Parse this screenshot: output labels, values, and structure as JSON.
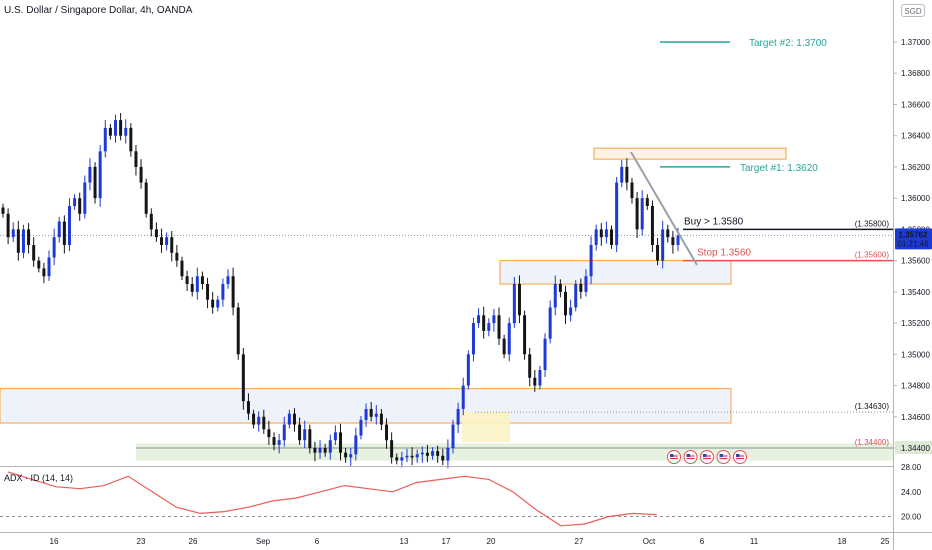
{
  "header": {
    "title": "U.S. Dollar / Singapore Dollar, 4h, OANDA",
    "currency_badge": "SGD",
    "indicator_label": "ADX · ID (14, 14)"
  },
  "price_badge": {
    "price": "1.35762",
    "countdown": "01:21:46"
  },
  "colors": {
    "bull": "#1e3ad6",
    "bear": "#151515",
    "target": "#26a69a",
    "stop": "#e05252",
    "orange_box": "#f5a040",
    "zone_fill": "#eef3fb",
    "green_zone": "#e6f1df",
    "adx_line": "#ef5b5b",
    "price_badge": "#1e3ad6"
  },
  "chart_data": [
    {
      "type": "candlestick",
      "title": "U.S. Dollar / Singapore Dollar, 4h, OANDA",
      "x_ticks": [
        "16",
        "23",
        "26",
        "Sep",
        "6",
        "13",
        "17",
        "20",
        "27",
        "Oct",
        "6",
        "11",
        "18",
        "25"
      ],
      "y_ticks": [
        "1.37000",
        "1.36800",
        "1.36600",
        "1.36400",
        "1.36200",
        "1.36000",
        "1.35800",
        "1.35600",
        "1.35400",
        "1.35200",
        "1.35000",
        "1.34800",
        "1.34600",
        "1.34400"
      ],
      "ylim": [
        1.3432,
        1.3728
      ],
      "last_price": 1.35762,
      "candle_closes": [
        1.359,
        1.3575,
        1.358,
        1.3565,
        1.358,
        1.357,
        1.356,
        1.3555,
        1.355,
        1.3562,
        1.3575,
        1.3585,
        1.357,
        1.3595,
        1.36,
        1.359,
        1.361,
        1.362,
        1.36,
        1.363,
        1.3645,
        1.364,
        1.365,
        1.364,
        1.3645,
        1.363,
        1.362,
        1.361,
        1.359,
        1.358,
        1.3575,
        1.357,
        1.3575,
        1.3565,
        1.356,
        1.355,
        1.3545,
        1.354,
        1.355,
        1.3545,
        1.3535,
        1.353,
        1.3535,
        1.3545,
        1.355,
        1.353,
        1.35,
        1.347,
        1.3462,
        1.3455,
        1.346,
        1.3452,
        1.3447,
        1.3442,
        1.3445,
        1.3455,
        1.3462,
        1.3455,
        1.3445,
        1.3452,
        1.344,
        1.3437,
        1.344,
        1.3437,
        1.3445,
        1.345,
        1.3437,
        1.3434,
        1.3436,
        1.3448,
        1.3458,
        1.3465,
        1.346,
        1.3462,
        1.3455,
        1.3445,
        1.3434,
        1.3432,
        1.3434,
        1.3435,
        1.3434,
        1.3436,
        1.3437,
        1.3435,
        1.3438,
        1.3435,
        1.3432,
        1.344,
        1.3455,
        1.3465,
        1.348,
        1.35,
        1.352,
        1.3525,
        1.3515,
        1.352,
        1.3525,
        1.351,
        1.35,
        1.352,
        1.3545,
        1.3525,
        1.35,
        1.3485,
        1.348,
        1.349,
        1.351,
        1.353,
        1.3545,
        1.354,
        1.3525,
        1.353,
        1.3545,
        1.354,
        1.355,
        1.357,
        1.358,
        1.3575,
        1.358,
        1.357,
        1.361,
        1.362,
        1.361,
        1.36,
        1.358,
        1.36,
        1.3595,
        1.357,
        1.356,
        1.358,
        1.3575,
        1.357,
        1.3576
      ],
      "levels": [
        {
          "label": "(1.35800)",
          "value": 1.358
        },
        {
          "label": "(1.35600)",
          "value": 1.356
        },
        {
          "label": "(1.34630)",
          "value": 1.3463
        },
        {
          "label": "(1.34400)",
          "value": 1.344
        }
      ],
      "annotations": [
        {
          "text": "Target #2: 1.3700",
          "value": 1.37
        },
        {
          "text": "Target #1: 1.3620",
          "value": 1.362
        },
        {
          "text": "Buy > 1.3580",
          "value": 1.358
        },
        {
          "text": "Stop 1.3560",
          "value": 1.356
        }
      ],
      "zones": [
        {
          "name": "resistance-box",
          "from": 1.3625,
          "to": 1.3632
        },
        {
          "name": "entry-box",
          "from": 1.3545,
          "to": 1.356
        },
        {
          "name": "support-zone",
          "from": 1.3456,
          "to": 1.3478
        },
        {
          "name": "base-zone",
          "from": 1.3432,
          "to": 1.3443
        }
      ],
      "grid": false
    },
    {
      "type": "line",
      "title": "ADX · ID (14, 14)",
      "y_ticks": [
        "28.00",
        "24.00",
        "20.00"
      ],
      "ylim": [
        17.5,
        28.0
      ],
      "values": [
        27.2,
        26.0,
        24.8,
        24.5,
        25.0,
        26.5,
        24.0,
        21.5,
        20.5,
        20.8,
        21.5,
        22.5,
        23.0,
        24.0,
        25.0,
        24.5,
        24.0,
        25.5,
        26.0,
        26.5,
        26.0,
        24.0,
        21.0,
        18.5,
        18.8,
        20.0,
        20.5,
        20.3
      ],
      "reference_line": 20.0
    }
  ]
}
